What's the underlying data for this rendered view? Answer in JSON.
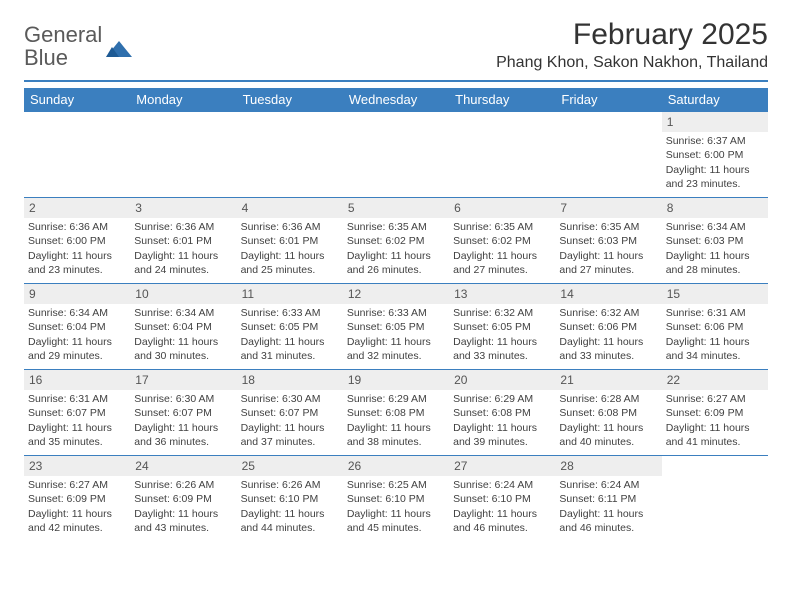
{
  "logo": {
    "text_gray": "General",
    "text_blue": "Blue"
  },
  "title": "February 2025",
  "location": "Phang Khon, Sakon Nakhon, Thailand",
  "colors": {
    "header_bar": "#3b7fbf",
    "row_separator": "#3b7fbf",
    "daynum_bg": "#eeeeee",
    "text": "#333333",
    "muted_text": "#414141",
    "logo_gray": "#5a5a5a",
    "logo_blue": "#2f6fad",
    "background": "#ffffff"
  },
  "day_headers": [
    "Sunday",
    "Monday",
    "Tuesday",
    "Wednesday",
    "Thursday",
    "Friday",
    "Saturday"
  ],
  "weeks": [
    [
      {
        "empty": true
      },
      {
        "empty": true
      },
      {
        "empty": true
      },
      {
        "empty": true
      },
      {
        "empty": true
      },
      {
        "empty": true
      },
      {
        "day": "1",
        "sunrise": "Sunrise: 6:37 AM",
        "sunset": "Sunset: 6:00 PM",
        "daylight": "Daylight: 11 hours and 23 minutes."
      }
    ],
    [
      {
        "day": "2",
        "sunrise": "Sunrise: 6:36 AM",
        "sunset": "Sunset: 6:00 PM",
        "daylight": "Daylight: 11 hours and 23 minutes."
      },
      {
        "day": "3",
        "sunrise": "Sunrise: 6:36 AM",
        "sunset": "Sunset: 6:01 PM",
        "daylight": "Daylight: 11 hours and 24 minutes."
      },
      {
        "day": "4",
        "sunrise": "Sunrise: 6:36 AM",
        "sunset": "Sunset: 6:01 PM",
        "daylight": "Daylight: 11 hours and 25 minutes."
      },
      {
        "day": "5",
        "sunrise": "Sunrise: 6:35 AM",
        "sunset": "Sunset: 6:02 PM",
        "daylight": "Daylight: 11 hours and 26 minutes."
      },
      {
        "day": "6",
        "sunrise": "Sunrise: 6:35 AM",
        "sunset": "Sunset: 6:02 PM",
        "daylight": "Daylight: 11 hours and 27 minutes."
      },
      {
        "day": "7",
        "sunrise": "Sunrise: 6:35 AM",
        "sunset": "Sunset: 6:03 PM",
        "daylight": "Daylight: 11 hours and 27 minutes."
      },
      {
        "day": "8",
        "sunrise": "Sunrise: 6:34 AM",
        "sunset": "Sunset: 6:03 PM",
        "daylight": "Daylight: 11 hours and 28 minutes."
      }
    ],
    [
      {
        "day": "9",
        "sunrise": "Sunrise: 6:34 AM",
        "sunset": "Sunset: 6:04 PM",
        "daylight": "Daylight: 11 hours and 29 minutes."
      },
      {
        "day": "10",
        "sunrise": "Sunrise: 6:34 AM",
        "sunset": "Sunset: 6:04 PM",
        "daylight": "Daylight: 11 hours and 30 minutes."
      },
      {
        "day": "11",
        "sunrise": "Sunrise: 6:33 AM",
        "sunset": "Sunset: 6:05 PM",
        "daylight": "Daylight: 11 hours and 31 minutes."
      },
      {
        "day": "12",
        "sunrise": "Sunrise: 6:33 AM",
        "sunset": "Sunset: 6:05 PM",
        "daylight": "Daylight: 11 hours and 32 minutes."
      },
      {
        "day": "13",
        "sunrise": "Sunrise: 6:32 AM",
        "sunset": "Sunset: 6:05 PM",
        "daylight": "Daylight: 11 hours and 33 minutes."
      },
      {
        "day": "14",
        "sunrise": "Sunrise: 6:32 AM",
        "sunset": "Sunset: 6:06 PM",
        "daylight": "Daylight: 11 hours and 33 minutes."
      },
      {
        "day": "15",
        "sunrise": "Sunrise: 6:31 AM",
        "sunset": "Sunset: 6:06 PM",
        "daylight": "Daylight: 11 hours and 34 minutes."
      }
    ],
    [
      {
        "day": "16",
        "sunrise": "Sunrise: 6:31 AM",
        "sunset": "Sunset: 6:07 PM",
        "daylight": "Daylight: 11 hours and 35 minutes."
      },
      {
        "day": "17",
        "sunrise": "Sunrise: 6:30 AM",
        "sunset": "Sunset: 6:07 PM",
        "daylight": "Daylight: 11 hours and 36 minutes."
      },
      {
        "day": "18",
        "sunrise": "Sunrise: 6:30 AM",
        "sunset": "Sunset: 6:07 PM",
        "daylight": "Daylight: 11 hours and 37 minutes."
      },
      {
        "day": "19",
        "sunrise": "Sunrise: 6:29 AM",
        "sunset": "Sunset: 6:08 PM",
        "daylight": "Daylight: 11 hours and 38 minutes."
      },
      {
        "day": "20",
        "sunrise": "Sunrise: 6:29 AM",
        "sunset": "Sunset: 6:08 PM",
        "daylight": "Daylight: 11 hours and 39 minutes."
      },
      {
        "day": "21",
        "sunrise": "Sunrise: 6:28 AM",
        "sunset": "Sunset: 6:08 PM",
        "daylight": "Daylight: 11 hours and 40 minutes."
      },
      {
        "day": "22",
        "sunrise": "Sunrise: 6:27 AM",
        "sunset": "Sunset: 6:09 PM",
        "daylight": "Daylight: 11 hours and 41 minutes."
      }
    ],
    [
      {
        "day": "23",
        "sunrise": "Sunrise: 6:27 AM",
        "sunset": "Sunset: 6:09 PM",
        "daylight": "Daylight: 11 hours and 42 minutes."
      },
      {
        "day": "24",
        "sunrise": "Sunrise: 6:26 AM",
        "sunset": "Sunset: 6:09 PM",
        "daylight": "Daylight: 11 hours and 43 minutes."
      },
      {
        "day": "25",
        "sunrise": "Sunrise: 6:26 AM",
        "sunset": "Sunset: 6:10 PM",
        "daylight": "Daylight: 11 hours and 44 minutes."
      },
      {
        "day": "26",
        "sunrise": "Sunrise: 6:25 AM",
        "sunset": "Sunset: 6:10 PM",
        "daylight": "Daylight: 11 hours and 45 minutes."
      },
      {
        "day": "27",
        "sunrise": "Sunrise: 6:24 AM",
        "sunset": "Sunset: 6:10 PM",
        "daylight": "Daylight: 11 hours and 46 minutes."
      },
      {
        "day": "28",
        "sunrise": "Sunrise: 6:24 AM",
        "sunset": "Sunset: 6:11 PM",
        "daylight": "Daylight: 11 hours and 46 minutes."
      },
      {
        "empty": true
      }
    ]
  ]
}
